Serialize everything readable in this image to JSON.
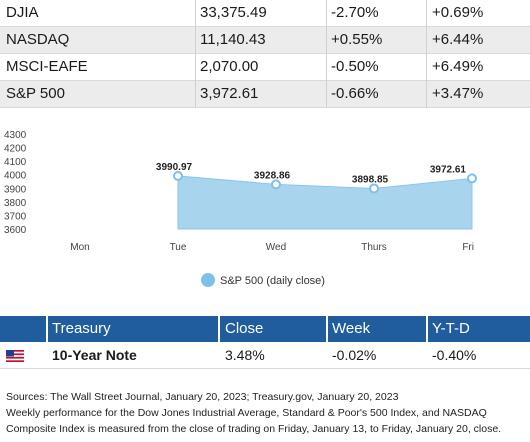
{
  "indices": [
    {
      "name": "DJIA",
      "close": "33,375.49",
      "week": "-2.70%",
      "ytd": "+0.69%"
    },
    {
      "name": "NASDAQ",
      "close": "11,140.43",
      "week": "+0.55%",
      "ytd": "+6.44%"
    },
    {
      "name": "MSCI-EAFE",
      "close": "2,070.00",
      "week": "-0.50%",
      "ytd": "+6.49%"
    },
    {
      "name": "S&P 500",
      "close": "3,972.61",
      "week": "-0.66%",
      "ytd": "+3.47%"
    }
  ],
  "chart_data": {
    "type": "area",
    "categories": [
      "Mon",
      "Tue",
      "Wed",
      "Thurs",
      "Fri"
    ],
    "series": [
      {
        "name": "S&P 500 (daily close)",
        "values": [
          null,
          3990.97,
          3928.86,
          3898.85,
          3972.61
        ]
      }
    ],
    "data_labels": [
      "3990.97",
      "3928.86",
      "3898.85",
      "3972.61"
    ],
    "y_ticks": [
      3600,
      3700,
      3800,
      3900,
      4000,
      4100,
      4200,
      4300
    ],
    "ylim": [
      3600,
      4300
    ],
    "grid": false,
    "legend_position": "bottom",
    "colors": {
      "fill": "#a9d4ee",
      "marker": "#7fc0e8"
    }
  },
  "treasury": {
    "headers": [
      "Treasury",
      "Close",
      "Week",
      "Y-T-D"
    ],
    "row": {
      "name": "10-Year Note",
      "close": "3.48%",
      "week": "-0.02%",
      "ytd": "-0.40%"
    },
    "header_color": "#1f5d9e"
  },
  "notes": [
    "Sources: The Wall Street Journal, January 20, 2023; Treasury.gov, January 20, 2023",
    "Weekly performance for the Dow Jones Industrial Average, Standard & Poor's 500 Index, and NASDAQ",
    "Composite Index is measured from the close of trading on Friday, January 13, to Friday, January 20, close."
  ]
}
